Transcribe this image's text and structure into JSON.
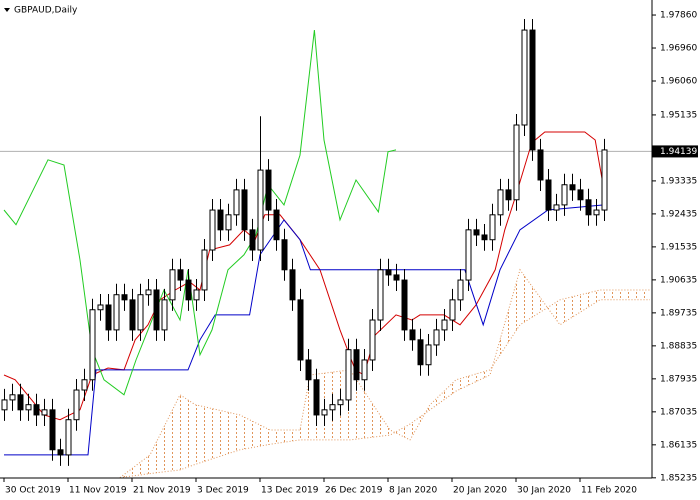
{
  "chart_data": {
    "type": "candlestick",
    "title": "GBPAUD,Daily",
    "categories": [
      "30 Oct 2019",
      null,
      null,
      null,
      null,
      null,
      null,
      null,
      "11 Nov 2019",
      null,
      null,
      null,
      null,
      null,
      null,
      null,
      "21 Nov 2019",
      null,
      null,
      null,
      null,
      null,
      null,
      null,
      "3 Dec 2019",
      null,
      null,
      null,
      null,
      null,
      null,
      null,
      "13 Dec 2019",
      null,
      null,
      null,
      null,
      null,
      null,
      null,
      "26 Dec 2019",
      null,
      null,
      null,
      null,
      null,
      null,
      null,
      "8 Jan 2020",
      null,
      null,
      null,
      null,
      null,
      null,
      null,
      "20 Jan 2020",
      null,
      null,
      null,
      null,
      null,
      null,
      null,
      "30 Jan 2020",
      null,
      null,
      null,
      null,
      null,
      null,
      null,
      "11 Feb 2020",
      null,
      null,
      null
    ],
    "open": [
      1.8709,
      1.8736,
      1.875,
      1.8709,
      1.8723,
      1.8695,
      1.8709,
      1.86,
      1.8586,
      1.8682,
      1.8763,
      1.8791,
      1.8982,
      1.8995,
      1.8927,
      1.9023,
      1.9009,
      1.8927,
      1.9023,
      1.9036,
      1.8927,
      1.9009,
      1.9091,
      1.9063,
      1.9009,
      1.9036,
      1.9145,
      1.9254,
      1.92,
      1.9241,
      1.9309,
      1.92,
      1.9145,
      1.9363,
      1.9254,
      1.9173,
      1.9091,
      1.9009,
      1.8845,
      1.8791,
      1.8695,
      1.8709,
      1.8723,
      1.8736,
      1.8873,
      1.8791,
      1.8845,
      1.8954,
      1.9091,
      1.9077,
      1.9063,
      1.8927,
      1.89,
      1.8832,
      1.8886,
      1.8927,
      1.8954,
      1.9009,
      1.9063,
      1.92,
      1.9186,
      1.9173,
      1.9241,
      1.9309,
      1.9282,
      1.9486,
      1.9745,
      1.9418,
      1.9336,
      1.9254,
      1.9268,
      1.9323,
      1.9309,
      1.9282,
      1.9241,
      1.9254
    ],
    "high": [
      1.8766,
      1.878,
      1.878,
      1.8753,
      1.8753,
      1.8739,
      1.8739,
      1.863,
      1.8712,
      1.8793,
      1.8821,
      1.9012,
      1.9025,
      1.9025,
      1.9053,
      1.9053,
      1.9039,
      1.9053,
      1.9066,
      1.9066,
      1.9039,
      1.9121,
      1.9121,
      1.9093,
      1.9066,
      1.9175,
      1.9284,
      1.9284,
      1.9271,
      1.9339,
      1.9339,
      1.923,
      1.951,
      1.9393,
      1.9284,
      1.9203,
      1.9121,
      1.9039,
      1.8875,
      1.8821,
      1.8739,
      1.8753,
      1.8766,
      1.8903,
      1.8903,
      1.8875,
      1.8984,
      1.9121,
      1.9121,
      1.9107,
      1.9093,
      1.8957,
      1.893,
      1.8916,
      1.8957,
      1.8984,
      1.9039,
      1.9093,
      1.923,
      1.923,
      1.9216,
      1.9271,
      1.9339,
      1.9339,
      1.9516,
      1.9775,
      1.9775,
      1.9448,
      1.9366,
      1.9298,
      1.9353,
      1.9353,
      1.9339,
      1.9312,
      1.9284,
      1.9448
    ],
    "low": [
      1.8679,
      1.8706,
      1.8679,
      1.8679,
      1.8665,
      1.8665,
      1.857,
      1.8556,
      1.8556,
      1.8652,
      1.8733,
      1.8761,
      1.8952,
      1.8897,
      1.8897,
      1.8979,
      1.8897,
      1.8897,
      1.8993,
      1.8897,
      1.8897,
      1.8979,
      1.9033,
      1.8979,
      1.8979,
      1.9006,
      1.9115,
      1.917,
      1.917,
      1.9211,
      1.917,
      1.9115,
      1.9115,
      1.9224,
      1.9143,
      1.9061,
      1.8979,
      1.8815,
      1.8761,
      1.8665,
      1.8665,
      1.8679,
      1.8693,
      1.8706,
      1.8761,
      1.8761,
      1.8815,
      1.8924,
      1.9047,
      1.9033,
      1.8897,
      1.887,
      1.8802,
      1.8802,
      1.8856,
      1.8897,
      1.8924,
      1.8979,
      1.9033,
      1.9156,
      1.9143,
      1.9143,
      1.9211,
      1.9252,
      1.9252,
      1.9456,
      1.9388,
      1.9306,
      1.9224,
      1.9224,
      1.9238,
      1.9279,
      1.9252,
      1.9211,
      1.9211,
      1.9224
    ],
    "close": [
      1.8736,
      1.875,
      1.8709,
      1.8723,
      1.8695,
      1.8709,
      1.86,
      1.8586,
      1.8682,
      1.8763,
      1.8791,
      1.8982,
      1.8995,
      1.8927,
      1.9023,
      1.9009,
      1.8927,
      1.9023,
      1.9036,
      1.8927,
      1.9009,
      1.9091,
      1.9063,
      1.9009,
      1.9036,
      1.9145,
      1.9254,
      1.92,
      1.9241,
      1.9309,
      1.92,
      1.9145,
      1.9363,
      1.9254,
      1.9173,
      1.9091,
      1.9009,
      1.8845,
      1.8791,
      1.8695,
      1.8709,
      1.8723,
      1.8736,
      1.8873,
      1.8791,
      1.8845,
      1.8954,
      1.9091,
      1.9077,
      1.9063,
      1.8927,
      1.89,
      1.8832,
      1.8886,
      1.8927,
      1.8954,
      1.9009,
      1.9063,
      1.92,
      1.9186,
      1.9173,
      1.9241,
      1.9309,
      1.9282,
      1.9486,
      1.9745,
      1.9418,
      1.9336,
      1.9254,
      1.9268,
      1.9323,
      1.9309,
      1.9282,
      1.9241,
      1.9254,
      1.9418
    ],
    "lines": [
      {
        "color": "#d40000",
        "x": [
          0,
          1.4,
          5,
          7,
          9.5,
          11,
          13,
          15,
          16.4,
          18,
          19.5,
          21.4,
          23.2,
          24.5,
          25.7,
          28.2,
          30,
          31.4,
          32.6,
          34.5,
          37,
          39.5,
          42,
          43.9,
          45,
          46.4,
          49,
          51,
          52,
          55,
          57,
          59,
          61.4,
          62.6,
          64,
          65.7,
          66.4,
          67.6,
          72.6,
          73.9,
          75
        ],
        "values": [
          1.8804,
          1.8791,
          1.8695,
          1.8682,
          1.8709,
          1.8804,
          1.8823,
          1.8818,
          1.89,
          1.8941,
          1.9009,
          1.9036,
          1.9058,
          1.9036,
          1.9145,
          1.9159,
          1.92,
          1.9173,
          1.9241,
          1.9241,
          1.9173,
          1.9091,
          1.8927,
          1.8818,
          1.8804,
          1.8913,
          1.8968,
          1.8954,
          1.8968,
          1.8968,
          1.8941,
          1.8995,
          1.9091,
          1.92,
          1.9295,
          1.9418,
          1.9445,
          1.9467,
          1.9467,
          1.9445,
          1.9309
        ]
      },
      {
        "color": "#0000c8",
        "x": [
          0,
          10.5,
          11.5,
          23,
          24.5,
          26.4,
          30.7,
          32,
          35,
          37,
          38.3,
          57.6,
          59.9,
          62,
          64.5,
          68,
          75
        ],
        "values": [
          1.8586,
          1.8586,
          1.8818,
          1.8818,
          1.89,
          1.8968,
          1.8968,
          1.9132,
          1.9227,
          1.9173,
          1.9091,
          1.9091,
          1.8941,
          1.9091,
          1.92,
          1.9254,
          1.9268
        ]
      },
      {
        "color": "#22cc22",
        "x": [
          0,
          1.5,
          5.5,
          7.5,
          9.5,
          11,
          12.5,
          15,
          16.5,
          18,
          20,
          22,
          23,
          24.5,
          26,
          28,
          30,
          31.5,
          33,
          35,
          37,
          38.8,
          40,
          42,
          44,
          46.8,
          48,
          49
        ],
        "values": [
          1.9254,
          1.9214,
          1.9391,
          1.9377,
          1.9118,
          1.8873,
          1.8791,
          1.875,
          1.8845,
          1.8927,
          1.9036,
          1.8954,
          1.9091,
          1.8859,
          1.8927,
          1.9091,
          1.9132,
          1.9186,
          1.9323,
          1.9268,
          1.9404,
          1.9745,
          1.9445,
          1.9227,
          1.9336,
          1.9249,
          1.9413,
          1.9418
        ]
      }
    ],
    "cloud": {
      "color": "#e0955a",
      "x": [
        14.5,
        18.25,
        22,
        23.9,
        29.5,
        33.25,
        37,
        38.25,
        43.25,
        48.25,
        50.75,
        53.25,
        56.5,
        60.75,
        64.5,
        69.5,
        74.5,
        80.75
      ],
      "span_a": [
        1.8524,
        1.8586,
        1.875,
        1.8723,
        1.8695,
        1.8654,
        1.8654,
        1.8804,
        1.8818,
        1.8654,
        1.8627,
        1.8723,
        1.8791,
        1.8818,
        1.8941,
        1.9009,
        1.9036,
        1.9036
      ],
      "span_b": [
        1.8524,
        1.8535,
        1.8545,
        1.856,
        1.86,
        1.8615,
        1.8627,
        1.8627,
        1.8627,
        1.864,
        1.867,
        1.8709,
        1.876,
        1.8804,
        1.9091,
        1.8941,
        1.9009,
        1.9009
      ]
    },
    "last": 1.94139,
    "ylim": [
      1.8523,
      1.9827
    ],
    "yticks": [
      {
        "value": 1.9786,
        "label": "1.97860"
      },
      {
        "value": 1.9696,
        "label": "1.96960"
      },
      {
        "value": 1.9606,
        "label": "1.96060"
      },
      1.95135,
      1.93335,
      1.92435,
      1.91535,
      1.90635,
      1.89735,
      1.88835,
      1.87935,
      1.87035,
      1.86135,
      1.85235
    ]
  }
}
